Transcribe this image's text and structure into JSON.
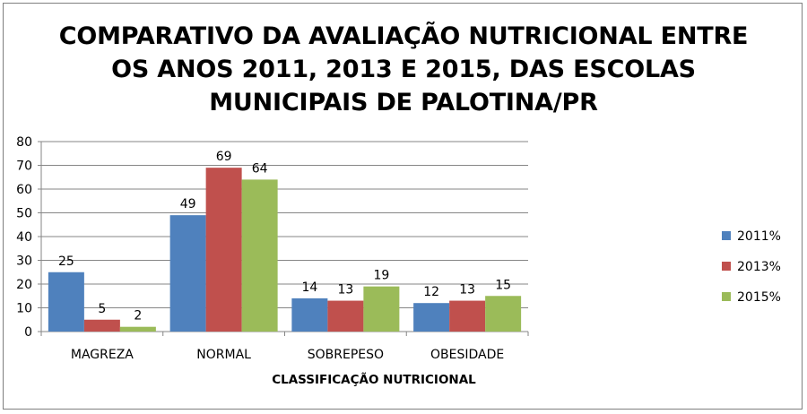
{
  "chart_data": {
    "type": "bar",
    "title_lines": [
      "COMPARATIVO DA AVALIAÇÃO NUTRICIONAL ENTRE",
      "OS ANOS 2011, 2013 E 2015, DAS ESCOLAS",
      "MUNICIPAIS DE PALOTINA/PR"
    ],
    "categories": [
      "MAGREZA",
      "NORMAL",
      "SOBREPESO",
      "OBESIDADE"
    ],
    "series": [
      {
        "name": "2011%",
        "color": "#4f81bd",
        "values": [
          25,
          49,
          14,
          12
        ]
      },
      {
        "name": "2013%",
        "color": "#c0504d",
        "values": [
          5,
          69,
          13,
          13
        ]
      },
      {
        "name": "2015%",
        "color": "#9bbb59",
        "values": [
          2,
          64,
          19,
          15
        ]
      }
    ],
    "xlabel": "CLASSIFICAÇÃO  NUTRICIONAL",
    "ylabel": "",
    "ylim": [
      0,
      80
    ],
    "yticks": [
      "0",
      "10",
      "20",
      "30",
      "40",
      "50",
      "60",
      "70",
      "80"
    ],
    "grid": true,
    "legend_position": "right",
    "data_labels": true
  }
}
